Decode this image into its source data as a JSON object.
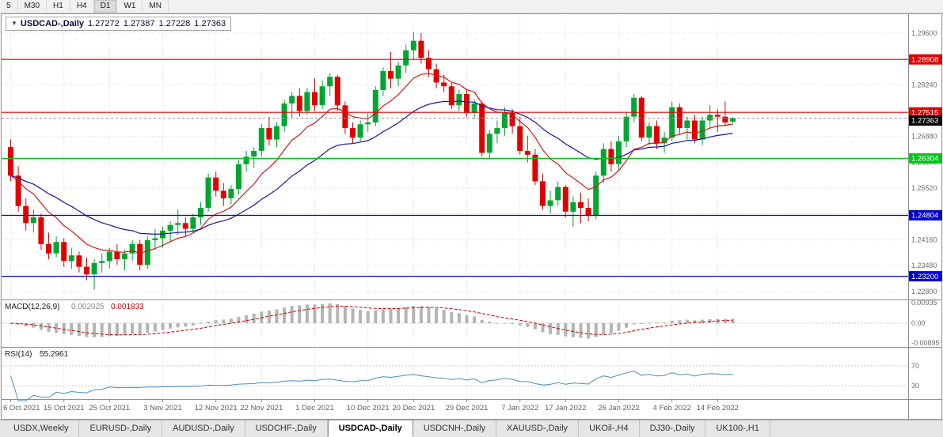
{
  "toolbar": {
    "timeframes": [
      "5",
      "M30",
      "H1",
      "H4",
      "D1",
      "W1",
      "MN"
    ],
    "active": "D1"
  },
  "chart_header": {
    "collapse_icon": "▼",
    "symbol": "USDCAD-,Daily",
    "open": "1.27272",
    "high": "1.27387",
    "low": "1.27228",
    "close": "1.27363"
  },
  "price_axis": {
    "grid_values": [
      1.296,
      1.2892,
      1.2824,
      1.2756,
      1.2688,
      1.262,
      1.2552,
      1.2484,
      1.2416,
      1.2348,
      1.228
    ],
    "visible_labels": [
      {
        "value": 1.296,
        "label": "1.29600"
      },
      {
        "value": 1.2824,
        "label": "1.28240"
      },
      {
        "value": 1.2688,
        "label": "1.26880"
      },
      {
        "value": 1.262,
        "label": "1.26200"
      },
      {
        "value": 1.2552,
        "label": "1.25520"
      },
      {
        "value": 1.2416,
        "label": "1.24160"
      },
      {
        "value": 1.2348,
        "label": "1.23480"
      },
      {
        "value": 1.228,
        "label": "1.22800"
      }
    ]
  },
  "levels": [
    {
      "value": 1.28908,
      "label": "1.28908",
      "color": "#e00000",
      "type": "resistance"
    },
    {
      "value": 1.27515,
      "label": "1.27515",
      "color": "#e00000",
      "type": "resistance"
    },
    {
      "value": 1.26304,
      "label": "1.26304",
      "color": "#00c814",
      "type": "support"
    },
    {
      "value": 1.24804,
      "label": "1.24804",
      "color": "#0000d2",
      "type": "support"
    },
    {
      "value": 1.232,
      "label": "1.23200",
      "color": "#0000d2",
      "type": "support"
    }
  ],
  "current_price": {
    "value": 1.27363,
    "label": "1.27363",
    "badge_color": "#000000"
  },
  "macd_panel": {
    "title": "MACD(12,26,9)",
    "main_value": "0.002025",
    "signal_value": "0.001833",
    "axis_labels": [
      {
        "value": 0.00935,
        "label": "0.00935"
      },
      {
        "value": 0,
        "label": "0.00"
      },
      {
        "value": -0.00895,
        "label": "-0.00895"
      }
    ]
  },
  "rsi_panel": {
    "title": "RSI(14)",
    "value": "55.2961",
    "levels": [
      {
        "value": 70,
        "label": "70"
      },
      {
        "value": 30,
        "label": "30"
      }
    ]
  },
  "time_axis": [
    {
      "index": 0,
      "label": "6 Oct 2021"
    },
    {
      "index": 7,
      "label": "15 Oct 2021"
    },
    {
      "index": 13,
      "label": "25 Oct 2021"
    },
    {
      "index": 20,
      "label": "3 Nov 2021"
    },
    {
      "index": 27,
      "label": "12 Nov 2021"
    },
    {
      "index": 33,
      "label": "22 Nov 2021"
    },
    {
      "index": 40,
      "label": "1 Dec 2021"
    },
    {
      "index": 47,
      "label": "10 Dec 2021"
    },
    {
      "index": 53,
      "label": "20 Dec 2021"
    },
    {
      "index": 60,
      "label": "29 Dec 2021"
    },
    {
      "index": 67,
      "label": "7 Jan 2022"
    },
    {
      "index": 73,
      "label": "17 Jan 2022"
    },
    {
      "index": 80,
      "label": "26 Jan 2022"
    },
    {
      "index": 87,
      "label": "4 Feb 2022"
    },
    {
      "index": 93,
      "label": "14 Feb 2022"
    }
  ],
  "tabs": {
    "active_index": 4,
    "items": [
      "USDX,Weekly",
      "EURUSD-,Daily",
      "AUDUSD-,Daily",
      "USDCHF-,Daily",
      "USDCAD-,Daily",
      "USDCNH-,Daily",
      "XAUUSD-,Daily",
      "UKOil-,H4",
      "DJ30-,Daily",
      "UK100-,H1"
    ]
  },
  "chart_data": {
    "type": "candlestick",
    "symbol": "USDCAD",
    "timeframe": "Daily",
    "ylim": [
      1.2263,
      1.2989
    ],
    "colors": {
      "up": "#00a532",
      "down": "#e00000",
      "ma_fast": "#d41717",
      "ma_slow": "#15159e",
      "macd_hist": "#b4b4b4",
      "macd_signal": "#cc0000",
      "rsi": "#4e8cbe"
    },
    "overlays": [
      {
        "name": "ma-fast",
        "type": "ema",
        "period": 10,
        "color": "#d41717"
      },
      {
        "name": "ma-slow",
        "type": "ema",
        "period": 25,
        "color": "#15159e"
      }
    ],
    "indicators": [
      {
        "name": "MACD",
        "params": [
          12,
          26,
          9
        ]
      },
      {
        "name": "RSI",
        "params": [
          14
        ]
      }
    ],
    "candles": [
      [
        1.266,
        1.268,
        1.257,
        1.2585
      ],
      [
        1.2585,
        1.261,
        1.249,
        1.2505
      ],
      [
        1.2505,
        1.2525,
        1.244,
        1.246
      ],
      [
        1.246,
        1.2495,
        1.2435,
        1.2475
      ],
      [
        1.2475,
        1.2485,
        1.239,
        1.2405
      ],
      [
        1.2405,
        1.2435,
        1.2365,
        1.238
      ],
      [
        1.238,
        1.2425,
        1.237,
        1.241
      ],
      [
        1.241,
        1.242,
        1.2345,
        1.236
      ],
      [
        1.236,
        1.2395,
        1.234,
        1.2375
      ],
      [
        1.2375,
        1.2385,
        1.233,
        1.2345
      ],
      [
        1.2345,
        1.237,
        1.231,
        1.2325
      ],
      [
        1.2325,
        1.2365,
        1.2285,
        1.2355
      ],
      [
        1.2355,
        1.238,
        1.233,
        1.236
      ],
      [
        1.236,
        1.2395,
        1.234,
        1.2385
      ],
      [
        1.2385,
        1.2405,
        1.235,
        1.2365
      ],
      [
        1.2365,
        1.239,
        1.2335,
        1.238
      ],
      [
        1.238,
        1.2415,
        1.236,
        1.2405
      ],
      [
        1.2405,
        1.2415,
        1.2335,
        1.235
      ],
      [
        1.235,
        1.2425,
        1.234,
        1.2415
      ],
      [
        1.2415,
        1.2445,
        1.239,
        1.242
      ],
      [
        1.242,
        1.245,
        1.2395,
        1.244
      ],
      [
        1.244,
        1.2465,
        1.241,
        1.2455
      ],
      [
        1.2455,
        1.2495,
        1.243,
        1.246
      ],
      [
        1.246,
        1.2475,
        1.2425,
        1.2445
      ],
      [
        1.2445,
        1.2485,
        1.2435,
        1.2475
      ],
      [
        1.2475,
        1.2515,
        1.2455,
        1.25
      ],
      [
        1.25,
        1.259,
        1.249,
        1.258
      ],
      [
        1.258,
        1.2595,
        1.253,
        1.2545
      ],
      [
        1.2545,
        1.2565,
        1.2505,
        1.2525
      ],
      [
        1.2525,
        1.256,
        1.251,
        1.255
      ],
      [
        1.255,
        1.2625,
        1.2535,
        1.2615
      ],
      [
        1.2615,
        1.265,
        1.2595,
        1.2635
      ],
      [
        1.2635,
        1.266,
        1.2605,
        1.265
      ],
      [
        1.265,
        1.272,
        1.2635,
        1.271
      ],
      [
        1.271,
        1.274,
        1.2665,
        1.268
      ],
      [
        1.268,
        1.2725,
        1.266,
        1.2715
      ],
      [
        1.2715,
        1.2785,
        1.27,
        1.2775
      ],
      [
        1.2775,
        1.2805,
        1.2735,
        1.2795
      ],
      [
        1.2795,
        1.2815,
        1.274,
        1.2755
      ],
      [
        1.2755,
        1.2815,
        1.2745,
        1.2805
      ],
      [
        1.2805,
        1.284,
        1.2755,
        1.277
      ],
      [
        1.277,
        1.2835,
        1.276,
        1.282
      ],
      [
        1.282,
        1.2855,
        1.2795,
        1.2845
      ],
      [
        1.2845,
        1.285,
        1.2755,
        1.277
      ],
      [
        1.277,
        1.278,
        1.2695,
        1.271
      ],
      [
        1.271,
        1.2725,
        1.267,
        1.2685
      ],
      [
        1.2685,
        1.273,
        1.2675,
        1.272
      ],
      [
        1.272,
        1.275,
        1.27,
        1.2725
      ],
      [
        1.2725,
        1.282,
        1.2715,
        1.281
      ],
      [
        1.281,
        1.287,
        1.2795,
        1.286
      ],
      [
        1.286,
        1.291,
        1.2815,
        1.284
      ],
      [
        1.284,
        1.2885,
        1.282,
        1.2875
      ],
      [
        1.2875,
        1.293,
        1.2855,
        1.2915
      ],
      [
        1.2915,
        1.2964,
        1.289,
        1.294
      ],
      [
        1.294,
        1.296,
        1.288,
        1.2895
      ],
      [
        1.2895,
        1.2915,
        1.2845,
        1.2865
      ],
      [
        1.2865,
        1.288,
        1.2815,
        1.283
      ],
      [
        1.283,
        1.285,
        1.2805,
        1.282
      ],
      [
        1.282,
        1.283,
        1.276,
        1.277
      ],
      [
        1.277,
        1.281,
        1.2755,
        1.28
      ],
      [
        1.28,
        1.281,
        1.274,
        1.275
      ],
      [
        1.275,
        1.2785,
        1.2735,
        1.2775
      ],
      [
        1.2775,
        1.278,
        1.2635,
        1.2645
      ],
      [
        1.2645,
        1.2705,
        1.263,
        1.2695
      ],
      [
        1.2695,
        1.273,
        1.267,
        1.271
      ],
      [
        1.271,
        1.2765,
        1.269,
        1.275
      ],
      [
        1.275,
        1.276,
        1.2695,
        1.2715
      ],
      [
        1.2715,
        1.274,
        1.264,
        1.265
      ],
      [
        1.265,
        1.269,
        1.262,
        1.264
      ],
      [
        1.264,
        1.2655,
        1.256,
        1.257
      ],
      [
        1.257,
        1.259,
        1.2495,
        1.2505
      ],
      [
        1.2505,
        1.2545,
        1.2485,
        1.252
      ],
      [
        1.252,
        1.257,
        1.2505,
        1.2555
      ],
      [
        1.2555,
        1.256,
        1.2475,
        1.249
      ],
      [
        1.249,
        1.253,
        1.245,
        1.2515
      ],
      [
        1.2515,
        1.254,
        1.246,
        1.25
      ],
      [
        1.25,
        1.2525,
        1.2465,
        1.248
      ],
      [
        1.248,
        1.2595,
        1.247,
        1.2585
      ],
      [
        1.2585,
        1.267,
        1.2565,
        1.2655
      ],
      [
        1.2655,
        1.2675,
        1.2595,
        1.2615
      ],
      [
        1.2615,
        1.269,
        1.26,
        1.2675
      ],
      [
        1.2675,
        1.275,
        1.266,
        1.274
      ],
      [
        1.274,
        1.28,
        1.2725,
        1.279
      ],
      [
        1.279,
        1.2795,
        1.2675,
        1.2685
      ],
      [
        1.2685,
        1.2725,
        1.2665,
        1.2715
      ],
      [
        1.2715,
        1.273,
        1.2655,
        1.267
      ],
      [
        1.267,
        1.27,
        1.2645,
        1.2685
      ],
      [
        1.2685,
        1.278,
        1.2675,
        1.2765
      ],
      [
        1.2765,
        1.2775,
        1.2695,
        1.271
      ],
      [
        1.271,
        1.274,
        1.268,
        1.273
      ],
      [
        1.273,
        1.2745,
        1.267,
        1.268
      ],
      [
        1.268,
        1.274,
        1.2665,
        1.273
      ],
      [
        1.273,
        1.277,
        1.271,
        1.2745
      ],
      [
        1.2745,
        1.276,
        1.27,
        1.274
      ],
      [
        1.274,
        1.278,
        1.2715,
        1.2725
      ],
      [
        1.27272,
        1.27387,
        1.27228,
        1.27363
      ]
    ]
  }
}
